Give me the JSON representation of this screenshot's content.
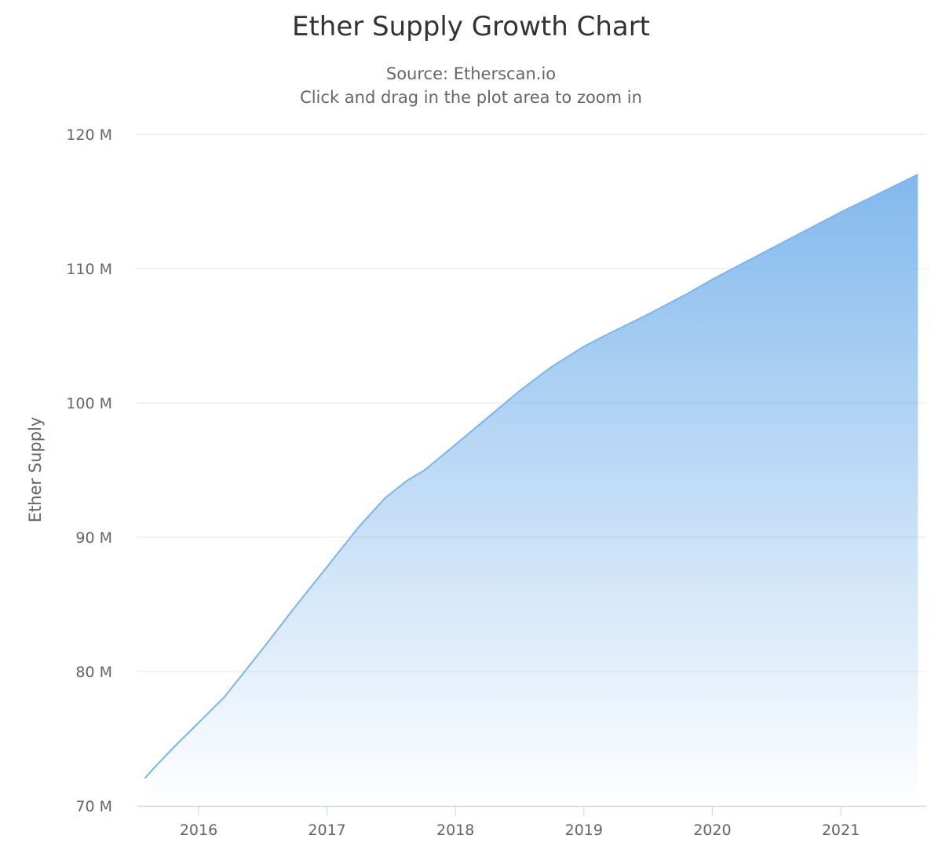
{
  "chart_data": {
    "type": "area",
    "title": "Ether Supply Growth Chart",
    "subtitle": [
      "Source: Etherscan.io",
      "Click and drag in the plot area to zoom in"
    ],
    "xlabel": "",
    "ylabel": "Ether Supply",
    "xlim": [
      2015.52,
      2021.65
    ],
    "ylim": [
      70,
      120
    ],
    "x_ticks": [
      "2016",
      "2017",
      "2018",
      "2019",
      "2020",
      "2021"
    ],
    "y_ticks": [
      "70 M",
      "80 M",
      "90 M",
      "100 M",
      "110 M",
      "120 M"
    ],
    "grid": true,
    "legend": "none",
    "color": "#7cb5ec",
    "series": [
      {
        "x": [
          2015.58,
          2015.67,
          2015.8,
          2016.0,
          2016.2,
          2016.5,
          2016.75,
          2017.0,
          2017.25,
          2017.45,
          2017.62,
          2017.76,
          2018.0,
          2018.25,
          2018.5,
          2018.75,
          2019.0,
          2019.12,
          2019.5,
          2019.8,
          2020.0,
          2020.5,
          2021.0,
          2021.6
        ],
        "y": [
          72.05,
          73.0,
          74.3,
          76.2,
          78.1,
          81.7,
          84.8,
          87.8,
          90.8,
          92.9,
          94.2,
          95.0,
          96.9,
          98.9,
          100.9,
          102.7,
          104.2,
          104.8,
          106.6,
          108.1,
          109.2,
          111.7,
          114.2,
          117.0
        ]
      }
    ]
  }
}
